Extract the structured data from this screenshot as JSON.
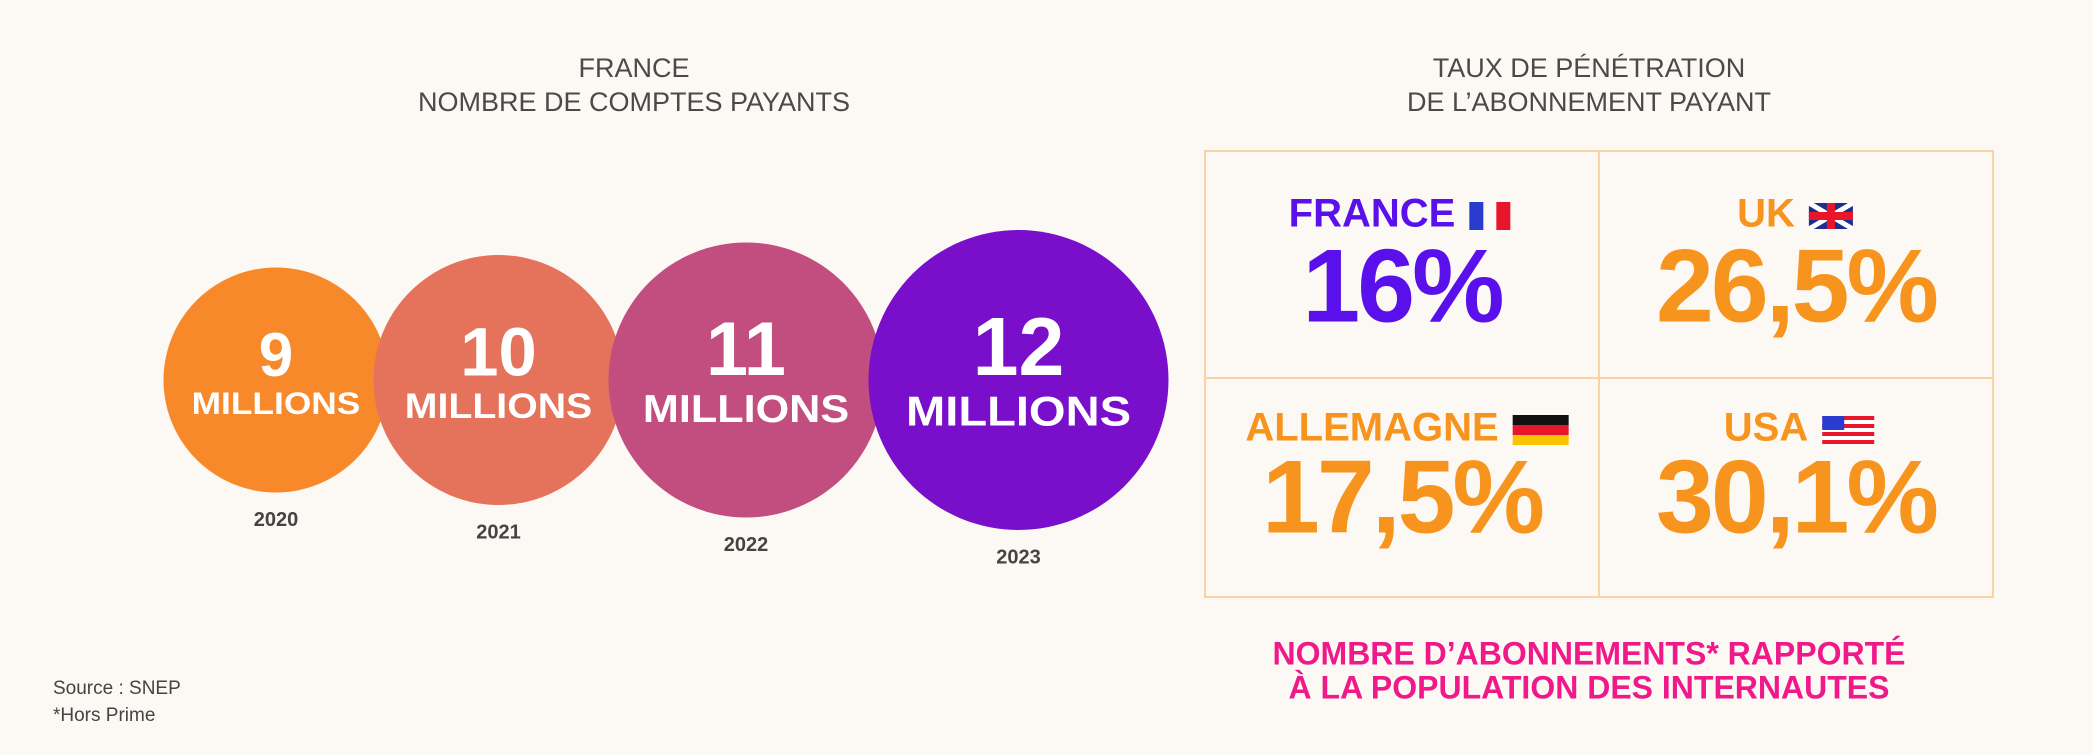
{
  "chart_data": [
    {
      "type": "bubble",
      "title": [
        "FRANCE",
        "NOMBRE DE COMPTES PAYANTS"
      ],
      "categories": [
        "2020",
        "2021",
        "2022",
        "2023"
      ],
      "values": [
        9,
        10,
        11,
        12
      ],
      "unit": "MILLIONS",
      "colors": [
        "#f7892a",
        "#e5725a",
        "#c24e80",
        "#7a0fcb"
      ]
    },
    {
      "type": "tiles",
      "title": [
        "TAUX DE PÉNÉTRATION",
        "DE L’ABONNEMENT PAYANT"
      ],
      "categories": [
        "FRANCE",
        "UK",
        "ALLEMAGNE",
        "USA"
      ],
      "values": [
        16,
        26.5,
        17.5,
        30.1
      ],
      "value_labels": [
        "16%",
        "26,5%",
        "17,5%",
        "30,1%"
      ],
      "colors": [
        "#5a10ea",
        "#f7941d",
        "#f7941d",
        "#f7941d"
      ],
      "note": [
        "NOMBRE D’ABONNEMENTS* RAPPORTÉ",
        "À LA POPULATION DES INTERNAUTES"
      ]
    }
  ],
  "source": "Source : SNEP",
  "footnote": "*Hors Prime"
}
